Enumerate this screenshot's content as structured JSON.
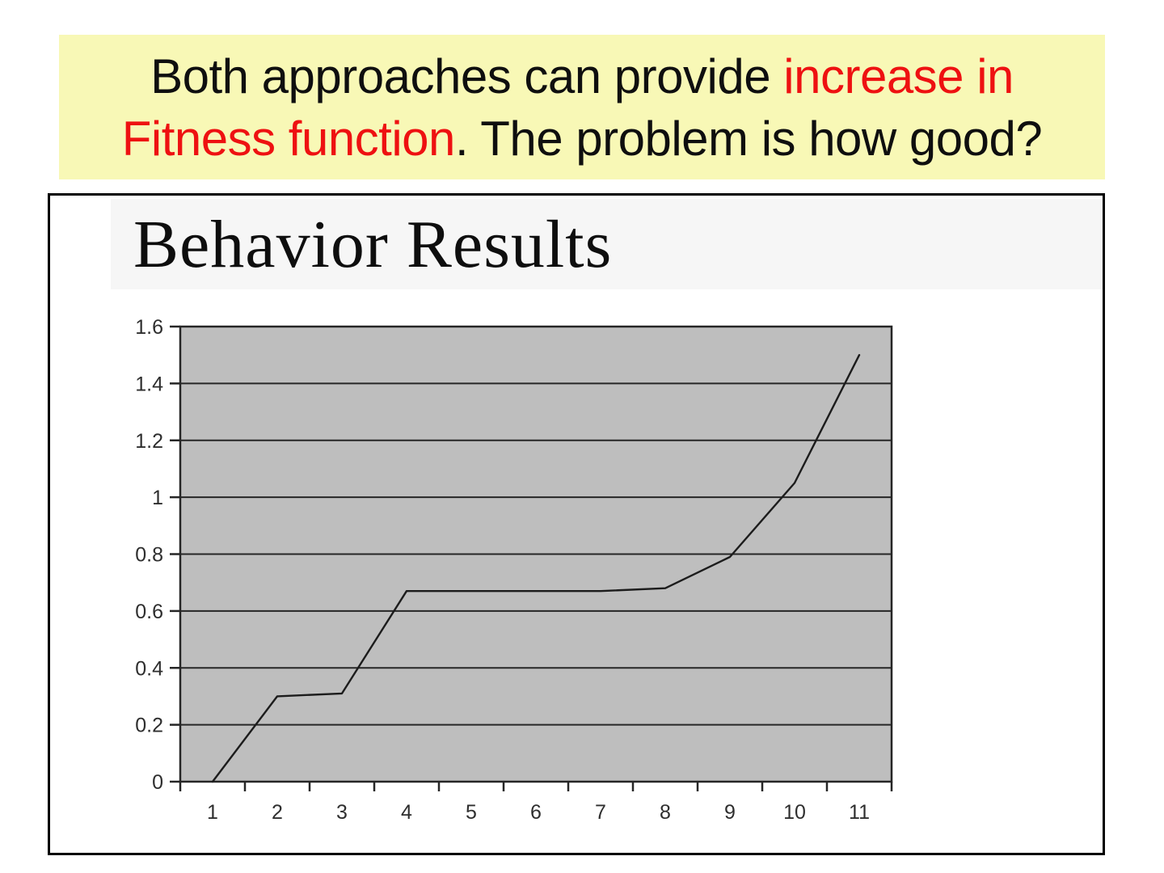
{
  "banner": {
    "background": "#f8f8b6",
    "text_color": "#0f0f0f",
    "highlight_color": "#ee1111",
    "line1_black": "Both approaches can provide ",
    "line1_red": "increase in",
    "line2_red": "Fitness function",
    "line2_black": ". The problem is how good?"
  },
  "chart_data": {
    "type": "line",
    "title": "Behavior Results",
    "categories": [
      "1",
      "2",
      "3",
      "4",
      "5",
      "6",
      "7",
      "8",
      "9",
      "10",
      "11"
    ],
    "values": [
      0,
      0.3,
      0.31,
      0.67,
      0.67,
      0.67,
      0.67,
      0.68,
      0.79,
      1.05,
      1.5
    ],
    "xlabel": "",
    "ylabel": "",
    "ylim": [
      0,
      1.6
    ],
    "y_ticks": [
      0,
      0.2,
      0.4,
      0.6,
      0.8,
      1.0,
      1.2,
      1.4,
      1.6
    ],
    "y_tick_labels": [
      "0",
      "0.2",
      "0.4",
      "0.6",
      "0.8",
      "1",
      "1.2",
      "1.4",
      "1.6"
    ],
    "grid": "horizontal",
    "legend": "none",
    "plot_bg": "#bebebe",
    "line_color": "#1c1c1c",
    "axis_color": "#262626",
    "tick_label_color": "#2e2e2e"
  }
}
